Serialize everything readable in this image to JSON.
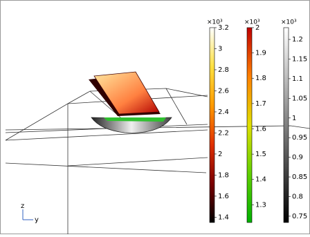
{
  "colorbars": [
    {
      "multiplier": "×10³",
      "range": [
        1.35,
        3.2
      ],
      "ticks": [
        1.4,
        1.6,
        1.8,
        2,
        2.2,
        2.4,
        2.6,
        2.8,
        3,
        3.2
      ],
      "colors": [
        "#000000",
        "#7a0000",
        "#e03000",
        "#ff9a00",
        "#ffe040",
        "#ffffff"
      ]
    },
    {
      "multiplier": "×10³",
      "range": [
        1.23,
        2
      ],
      "ticks": [
        1.3,
        1.4,
        1.5,
        1.6,
        1.7,
        1.8,
        1.9,
        2
      ],
      "colors": [
        "#00b000",
        "#60d000",
        "#e0e000",
        "#ff8000",
        "#c00000"
      ]
    },
    {
      "multiplier": "×10³",
      "range": [
        0.734,
        1.23
      ],
      "ticks": [
        0.75,
        0.8,
        0.85,
        0.9,
        0.95,
        1,
        1.05,
        1.1,
        1.15,
        1.2
      ],
      "colors": [
        "#000000",
        "#ffffff"
      ]
    }
  ],
  "triad": {
    "z": "z",
    "y": "y"
  }
}
